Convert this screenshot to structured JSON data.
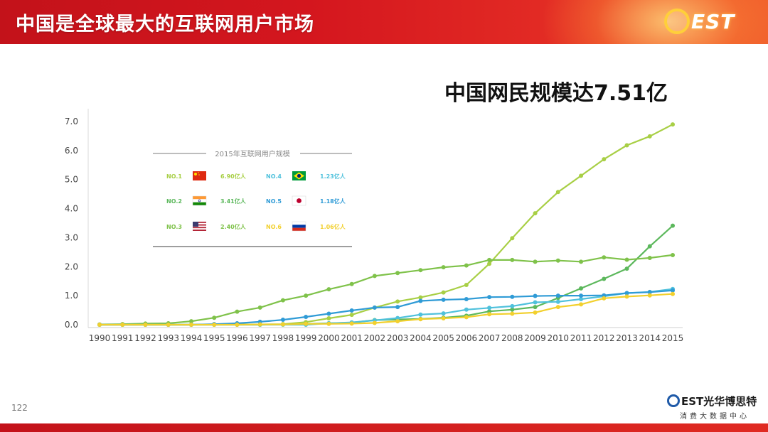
{
  "header": {
    "title": "中国是全球最大的互联网用户市场",
    "logo_text": "EST"
  },
  "subtitle": "中国网民规模达7.51亿",
  "page_number": "122",
  "brand": {
    "name": "EST光华博思特",
    "tagline": "消费大数据中心"
  },
  "colors": {
    "header_red": "#c3121a",
    "china": "#a8cf45",
    "india": "#5cb85c",
    "usa": "#7fc24a",
    "brazil": "#4fc1dc",
    "japan": "#2f9bd6",
    "russia": "#f2d02e"
  },
  "chart_data": {
    "type": "line",
    "x": [
      1990,
      1991,
      1992,
      1993,
      1994,
      1995,
      1996,
      1997,
      1998,
      1999,
      2000,
      2001,
      2002,
      2003,
      2004,
      2005,
      2006,
      2007,
      2008,
      2009,
      2010,
      2011,
      2012,
      2013,
      2014,
      2015
    ],
    "x_tick_labels": [
      "1990",
      "1991",
      "1992",
      "1993",
      "1994",
      "1995",
      "1996",
      "1997",
      "1998",
      "1999",
      "2000",
      "2001",
      "2002",
      "2003",
      "2004",
      "2005",
      "2006",
      "2007",
      "2008",
      "2009",
      "2010",
      "2011",
      "2012",
      "2013",
      "2014",
      "2015"
    ],
    "y_tick_labels": [
      "0.0",
      "1.0",
      "2.0",
      "3.0",
      "4.0",
      "5.0",
      "6.0",
      "7.0"
    ],
    "ylim": [
      0,
      7
    ],
    "grid": false,
    "series": [
      {
        "key": "china",
        "values": [
          0,
          0,
          0,
          0,
          0,
          0.01,
          0.01,
          0.01,
          0.02,
          0.09,
          0.22,
          0.34,
          0.59,
          0.8,
          0.94,
          1.11,
          1.37,
          2.1,
          2.98,
          3.84,
          4.57,
          5.13,
          5.7,
          6.18,
          6.49,
          6.9
        ]
      },
      {
        "key": "india",
        "values": [
          0,
          0,
          0,
          0,
          0,
          0,
          0,
          0,
          0.01,
          0.03,
          0.05,
          0.07,
          0.16,
          0.18,
          0.2,
          0.24,
          0.31,
          0.46,
          0.52,
          0.61,
          0.92,
          1.25,
          1.58,
          1.93,
          2.7,
          3.41
        ]
      },
      {
        "key": "usa",
        "values": [
          0.01,
          0.02,
          0.04,
          0.05,
          0.12,
          0.24,
          0.45,
          0.59,
          0.84,
          1.0,
          1.22,
          1.4,
          1.68,
          1.78,
          1.88,
          1.98,
          2.04,
          2.23,
          2.23,
          2.17,
          2.21,
          2.17,
          2.32,
          2.24,
          2.3,
          2.4
        ]
      },
      {
        "key": "brazil",
        "values": [
          0,
          0,
          0,
          0,
          0,
          0,
          0,
          0,
          0,
          0,
          0.05,
          0.08,
          0.15,
          0.23,
          0.35,
          0.39,
          0.52,
          0.58,
          0.64,
          0.77,
          0.79,
          0.88,
          0.98,
          1.09,
          1.13,
          1.23
        ]
      },
      {
        "key": "japan",
        "values": [
          0,
          0,
          0,
          0,
          0,
          0.02,
          0.05,
          0.1,
          0.17,
          0.27,
          0.38,
          0.49,
          0.59,
          0.61,
          0.82,
          0.86,
          0.88,
          0.95,
          0.96,
          0.99,
          1.0,
          1.0,
          1.01,
          1.09,
          1.12,
          1.18
        ]
      },
      {
        "key": "russia",
        "values": [
          0,
          0,
          0,
          0,
          0,
          0,
          0,
          0.01,
          0.01,
          0.03,
          0.03,
          0.04,
          0.06,
          0.12,
          0.19,
          0.22,
          0.26,
          0.36,
          0.38,
          0.42,
          0.61,
          0.7,
          0.91,
          0.97,
          1.01,
          1.06
        ]
      }
    ],
    "legend": {
      "title": "2015年互联网用户规模",
      "placement": "top-left",
      "entries": [
        {
          "rank": "NO.1",
          "flag": "china-flag",
          "value": "6.90亿人",
          "color": "#a8cf45"
        },
        {
          "rank": "NO.2",
          "flag": "india-flag",
          "value": "3.41亿人",
          "color": "#5cb85c"
        },
        {
          "rank": "NO.3",
          "flag": "usa-flag",
          "value": "2.40亿人",
          "color": "#7fc24a"
        },
        {
          "rank": "NO.4",
          "flag": "brazil-flag",
          "value": "1.23亿人",
          "color": "#4fc1dc"
        },
        {
          "rank": "NO.5",
          "flag": "japan-flag",
          "value": "1.18亿人",
          "color": "#2f9bd6"
        },
        {
          "rank": "NO.6",
          "flag": "russia-flag",
          "value": "1.06亿人",
          "color": "#f2d02e"
        }
      ]
    }
  }
}
